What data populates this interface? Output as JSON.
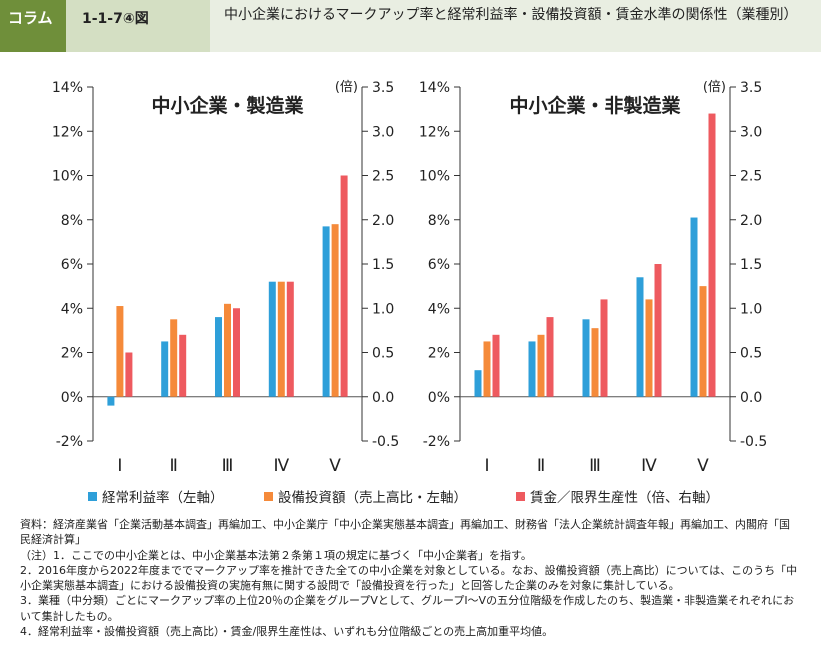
{
  "header": {
    "tag": "コラム",
    "number": "1-1-7④図",
    "title": "中小企業におけるマークアップ率と経常利益率・設備投資額・賃金水準の関係性（業種別）"
  },
  "colors": {
    "series1": "#2e9fd9",
    "series2": "#f58a3a",
    "series3": "#ee5a5f"
  },
  "legend": {
    "item1": "経常利益率（左軸）",
    "item2": "設備投資額（売上高比・左軸）",
    "item3": "賃金／限界生産性（倍、右軸）"
  },
  "chart_data": [
    {
      "type": "bar",
      "title": "中小企業・製造業",
      "categories": [
        "Ⅰ",
        "Ⅱ",
        "Ⅲ",
        "Ⅳ",
        "Ⅴ"
      ],
      "left_axis": {
        "ylim": [
          -2,
          14
        ],
        "ticks": [
          "-2%",
          "0%",
          "2%",
          "4%",
          "6%",
          "8%",
          "10%",
          "12%",
          "14%"
        ]
      },
      "right_axis": {
        "unit_label": "(倍)",
        "ylim": [
          -0.5,
          3.5
        ],
        "ticks": [
          "-0.5",
          "0.0",
          "0.5",
          "1.0",
          "1.5",
          "2.0",
          "2.5",
          "3.0",
          "3.5"
        ]
      },
      "series": [
        {
          "name": "経常利益率（左軸）",
          "axis": "left",
          "values": [
            -0.4,
            2.5,
            3.6,
            5.2,
            7.7
          ]
        },
        {
          "name": "設備投資額（売上高比・左軸）",
          "axis": "left",
          "values": [
            4.1,
            3.5,
            4.2,
            5.2,
            7.8
          ]
        },
        {
          "name": "賃金／限界生産性（倍、右軸）",
          "axis": "right",
          "values": [
            0.5,
            0.7,
            1.0,
            1.3,
            2.5
          ]
        }
      ]
    },
    {
      "type": "bar",
      "title": "中小企業・非製造業",
      "categories": [
        "Ⅰ",
        "Ⅱ",
        "Ⅲ",
        "Ⅳ",
        "Ⅴ"
      ],
      "left_axis": {
        "ylim": [
          -2,
          14
        ],
        "ticks": [
          "-2%",
          "0%",
          "2%",
          "4%",
          "6%",
          "8%",
          "10%",
          "12%",
          "14%"
        ]
      },
      "right_axis": {
        "unit_label": "(倍)",
        "ylim": [
          -0.5,
          3.5
        ],
        "ticks": [
          "-0.5",
          "0.0",
          "0.5",
          "1.0",
          "1.5",
          "2.0",
          "2.5",
          "3.0",
          "3.5"
        ]
      },
      "series": [
        {
          "name": "経常利益率（左軸）",
          "axis": "left",
          "values": [
            1.2,
            2.5,
            3.5,
            5.4,
            8.1
          ]
        },
        {
          "name": "設備投資額（売上高比・左軸）",
          "axis": "left",
          "values": [
            2.5,
            2.8,
            3.1,
            4.4,
            5.0
          ]
        },
        {
          "name": "賃金／限界生産性（倍、右軸）",
          "axis": "right",
          "values": [
            0.7,
            0.9,
            1.1,
            1.5,
            3.2
          ]
        }
      ]
    }
  ],
  "notes": [
    "資料：経済産業省「企業活動基本調査」再編加工、中小企業庁「中小企業実態基本調査」再編加工、財務省「法人企業統計調査年報」再編加工、内閣府「国民経済計算」",
    "（注）1．ここでの中小企業とは、中小企業基本法第２条第１項の規定に基づく「中小企業者」を指す。",
    "2．2016年度から2022年度まででマークアップ率を推計できた全ての中小企業を対象としている。なお、設備投資額（売上高比）については、このうち「中小企業実態基本調査」における設備投資の実施有無に関する設問で「設備投資を行った」と回答した企業のみを対象に集計している。",
    "3．業種（中分類）ごとにマークアップ率の上位20％の企業をグループⅤとして、グループⅠ～Ⅴの五分位階級を作成したのち、製造業・非製造業それぞれにおいて集計したもの。",
    "4．経常利益率・設備投資額（売上高比）・賃金/限界生産性は、いずれも分位階級ごとの売上高加重平均値。"
  ]
}
